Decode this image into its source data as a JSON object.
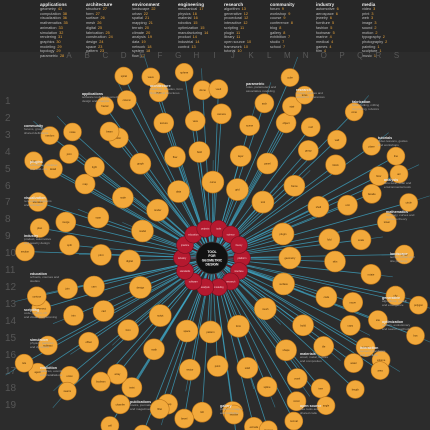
{
  "column_letters": [
    "A",
    "B",
    "C",
    "D",
    "E",
    "F",
    "G",
    "H",
    "I",
    "J",
    "K",
    "L",
    "M",
    "N",
    "O",
    "P",
    "Q",
    "R",
    "S"
  ],
  "row_numbers": [
    "1",
    "2",
    "3",
    "4",
    "5",
    "6",
    "7",
    "8",
    "9",
    "10",
    "11",
    "12",
    "13",
    "14",
    "15",
    "16",
    "17",
    "18",
    "19"
  ],
  "colors": {
    "background": "#2c2c2c",
    "node_fill": "#f2a93b",
    "node_outline": "#b8731a",
    "edge": "#3fa9c9",
    "hub_fill": "#111111",
    "inner_ring": "#b5192f",
    "letter_gray": "#5a5a5a"
  },
  "hub": {
    "label_lines": [
      "TOOL",
      "FOR",
      "GEOMETRIC",
      "DESIGN"
    ]
  },
  "inner_ring": {
    "labels": [
      "platform",
      "interface",
      "research",
      "modeling",
      "analysis",
      "software",
      "standards",
      "industry",
      "practice",
      "education",
      "projects",
      "tools",
      "science",
      "theory"
    ]
  },
  "legend": [
    {
      "title": "applications",
      "lines": [
        [
          "geometry",
          "41"
        ],
        [
          "computation",
          "38"
        ],
        [
          "visualization",
          "36"
        ],
        [
          "mathematics",
          "35"
        ],
        [
          "animation",
          "33"
        ],
        [
          "simulation",
          "32"
        ],
        [
          "rendering",
          "31"
        ],
        [
          "graphics",
          "30"
        ],
        [
          "modeling",
          "29"
        ],
        [
          "topology",
          "29"
        ],
        [
          "parametric",
          "28"
        ]
      ]
    },
    {
      "title": "architecture",
      "lines": [
        [
          "structure",
          "27"
        ],
        [
          "form",
          "27"
        ],
        [
          "surface",
          "26"
        ],
        [
          "mesh",
          "26"
        ],
        [
          "digital",
          "25"
        ],
        [
          "fabrication",
          "25"
        ],
        [
          "construction",
          "24"
        ],
        [
          "design",
          "24"
        ],
        [
          "space",
          "23"
        ],
        [
          "pattern",
          "23"
        ]
      ]
    },
    {
      "title": "environment",
      "lines": [
        [
          "landscape",
          "22"
        ],
        [
          "urban",
          "22"
        ],
        [
          "spatial",
          "21"
        ],
        [
          "mapping",
          "21"
        ],
        [
          "terrain",
          "20"
        ],
        [
          "climate",
          "20"
        ],
        [
          "analysis",
          "19"
        ],
        [
          "data",
          "19"
        ],
        [
          "network",
          "18"
        ],
        [
          "system",
          "18"
        ],
        [
          "flow",
          "17"
        ]
      ]
    },
    {
      "title": "engineering",
      "lines": [
        [
          "mechanical",
          "17"
        ],
        [
          "physics",
          "16"
        ],
        [
          "material",
          "16"
        ],
        [
          "robotics",
          "15"
        ],
        [
          "optimization",
          "15"
        ],
        [
          "manufacturing",
          "14"
        ],
        [
          "product",
          "14"
        ],
        [
          "industrial",
          "14"
        ],
        [
          "control",
          "13"
        ]
      ]
    },
    {
      "title": "research",
      "lines": [
        [
          "algorithm",
          "13"
        ],
        [
          "generative",
          "12"
        ],
        [
          "procedural",
          "12"
        ],
        [
          "interactive",
          "12"
        ],
        [
          "scripting",
          "11"
        ],
        [
          "plugin",
          "11"
        ],
        [
          "library",
          "11"
        ],
        [
          "open source",
          "10"
        ],
        [
          "framework",
          "10"
        ],
        [
          "tutorial",
          "10"
        ]
      ]
    },
    {
      "title": "community",
      "lines": [
        [
          "forum",
          "9"
        ],
        [
          "workshop",
          "9"
        ],
        [
          "course",
          "9"
        ],
        [
          "conference",
          "8"
        ],
        [
          "blog",
          "8"
        ],
        [
          "gallery",
          "8"
        ],
        [
          "exhibition",
          "7"
        ],
        [
          "studio",
          "7"
        ],
        [
          "school",
          "7"
        ]
      ]
    },
    {
      "title": "industry",
      "lines": [
        [
          "automotive",
          "6"
        ],
        [
          "aerospace",
          "6"
        ],
        [
          "jewelry",
          "6"
        ],
        [
          "furniture",
          "5"
        ],
        [
          "fashion",
          "5"
        ],
        [
          "footwear",
          "5"
        ],
        [
          "marine",
          "4"
        ],
        [
          "medical",
          "4"
        ],
        [
          "games",
          "4"
        ],
        [
          "film",
          "4"
        ]
      ]
    },
    {
      "title": "media",
      "lines": [
        [
          "video",
          "3"
        ],
        [
          "print",
          "3"
        ],
        [
          "web",
          "3"
        ],
        [
          "image",
          "3"
        ],
        [
          "sound",
          "2"
        ],
        [
          "motion",
          "2"
        ],
        [
          "typography",
          "2"
        ],
        [
          "photography",
          "2"
        ],
        [
          "painting",
          "1"
        ],
        [
          "sculpture",
          "1"
        ],
        [
          "music",
          "1"
        ]
      ]
    }
  ],
  "nodes": [
    {
      "label": "geometry"
    },
    {
      "label": "surface"
    },
    {
      "label": "mesh"
    },
    {
      "label": "form"
    },
    {
      "label": "pattern"
    },
    {
      "label": "space"
    },
    {
      "label": "script"
    },
    {
      "label": "design"
    },
    {
      "label": "digital"
    },
    {
      "label": "model"
    },
    {
      "label": "render"
    },
    {
      "label": "data"
    },
    {
      "label": "curve"
    },
    {
      "label": "grid"
    },
    {
      "label": "tool"
    },
    {
      "label": "plugin"
    },
    {
      "label": "code"
    },
    {
      "label": "build"
    },
    {
      "label": "shape"
    },
    {
      "label": "solid"
    },
    {
      "label": "point"
    },
    {
      "label": "vector"
    },
    {
      "label": "math"
    },
    {
      "label": "form"
    },
    {
      "label": "cad"
    },
    {
      "label": "cam"
    },
    {
      "label": "print"
    },
    {
      "label": "scan"
    },
    {
      "label": "node"
    },
    {
      "label": "graph"
    },
    {
      "label": "flow"
    },
    {
      "label": "field"
    },
    {
      "label": "layer"
    },
    {
      "label": "panel"
    },
    {
      "label": "frame"
    },
    {
      "label": "shell"
    },
    {
      "label": "fold"
    },
    {
      "label": "skin"
    },
    {
      "label": "tile"
    },
    {
      "label": "voxel"
    },
    {
      "label": "spline"
    },
    {
      "label": "nurbs"
    },
    {
      "label": "loft"
    },
    {
      "label": "sweep"
    },
    {
      "label": "twist"
    },
    {
      "label": "array"
    },
    {
      "label": "offset"
    },
    {
      "label": "trim"
    },
    {
      "label": "join"
    },
    {
      "label": "split"
    },
    {
      "label": "merge"
    },
    {
      "label": "map"
    },
    {
      "label": "light"
    },
    {
      "label": "color"
    },
    {
      "label": "texture"
    },
    {
      "label": "view"
    },
    {
      "label": "camera"
    },
    {
      "label": "scene"
    },
    {
      "label": "object"
    },
    {
      "label": "group"
    },
    {
      "label": "block"
    },
    {
      "label": "unit"
    },
    {
      "label": "scale"
    },
    {
      "label": "rotate"
    },
    {
      "label": "move"
    },
    {
      "label": "copy"
    },
    {
      "label": "mirror"
    },
    {
      "label": "extrude"
    },
    {
      "label": "revolve"
    },
    {
      "label": "bevel"
    },
    {
      "label": "fillet"
    },
    {
      "label": "chamfer"
    },
    {
      "label": "boolean"
    },
    {
      "label": "union"
    },
    {
      "label": "subtract"
    },
    {
      "label": "intersect"
    },
    {
      "label": "contour"
    },
    {
      "label": "section"
    },
    {
      "label": "plan"
    },
    {
      "label": "elevation"
    },
    {
      "label": "detail"
    },
    {
      "label": "joint"
    },
    {
      "label": "beam"
    },
    {
      "label": "column"
    },
    {
      "label": "truss"
    },
    {
      "label": "dome"
    },
    {
      "label": "vault"
    },
    {
      "label": "arch"
    },
    {
      "label": "stair"
    },
    {
      "label": "roof"
    },
    {
      "label": "wall"
    },
    {
      "label": "floor"
    },
    {
      "label": "facade"
    },
    {
      "label": "tower"
    },
    {
      "label": "bridge"
    },
    {
      "label": "city"
    },
    {
      "label": "site"
    },
    {
      "label": "terrain"
    },
    {
      "label": "water"
    },
    {
      "label": "tree"
    },
    {
      "label": "growth"
    },
    {
      "label": "cell"
    },
    {
      "label": "swarm"
    },
    {
      "label": "agent"
    },
    {
      "label": "rule"
    },
    {
      "label": "logic"
    },
    {
      "label": "random"
    },
    {
      "label": "noise"
    },
    {
      "label": "fractal"
    },
    {
      "label": "spiral"
    },
    {
      "label": "wave"
    },
    {
      "label": "sphere"
    },
    {
      "label": "cube"
    },
    {
      "label": "torus"
    },
    {
      "label": "cone"
    },
    {
      "label": "plane"
    },
    {
      "label": "line"
    },
    {
      "label": "arc"
    },
    {
      "label": "circle"
    },
    {
      "label": "polygon"
    },
    {
      "label": "box"
    },
    {
      "label": "volume"
    },
    {
      "label": "area"
    },
    {
      "label": "length"
    },
    {
      "label": "angle"
    },
    {
      "label": "normal"
    },
    {
      "label": "tangent"
    },
    {
      "label": "domain"
    },
    {
      "label": "range"
    },
    {
      "label": "series"
    },
    {
      "label": "list"
    },
    {
      "label": "tree"
    },
    {
      "label": "path"
    },
    {
      "label": "input"
    },
    {
      "label": "output"
    },
    {
      "label": "param"
    },
    {
      "label": "slider"
    },
    {
      "label": "panel"
    },
    {
      "label": "toggle"
    },
    {
      "label": "value"
    },
    {
      "label": "number"
    },
    {
      "label": "text"
    },
    {
      "label": "file"
    },
    {
      "label": "export"
    },
    {
      "label": "import"
    },
    {
      "label": "bake"
    },
    {
      "label": "preview"
    },
    {
      "label": "display"
    },
    {
      "label": "paint"
    },
    {
      "label": "sketch"
    },
    {
      "label": "draw"
    },
    {
      "label": "study"
    },
    {
      "label": "test"
    },
    {
      "label": "prototype"
    }
  ],
  "blurbs": [
    {
      "title": "applications",
      "lines": [
        "software tools for geometry",
        "design and analysis"
      ]
    },
    {
      "title": "architecture",
      "lines": [
        "buildings, facades, form",
        "finding and structures"
      ]
    },
    {
      "title": "parametric",
      "lines": [
        "rules, parameters and",
        "associative modeling"
      ]
    },
    {
      "title": "research",
      "lines": [
        "papers, studies and",
        "academic references"
      ]
    },
    {
      "title": "fabrication",
      "lines": [
        "laser cutting, milling",
        "3d printing, robotics"
      ]
    },
    {
      "title": "community",
      "lines": [
        "forums, groups and",
        "shared definitions"
      ]
    },
    {
      "title": "tutorials",
      "lines": [
        "video lessons, guides",
        "and workshops"
      ]
    },
    {
      "title": "plugins",
      "lines": [
        "extensions, libraries",
        "and add-ons"
      ]
    },
    {
      "title": "analysis",
      "lines": [
        "structural, solar and",
        "environmental tools"
      ]
    },
    {
      "title": "visualization",
      "lines": [
        "rendering, diagrams",
        "and animation"
      ]
    },
    {
      "title": "mathematics",
      "lines": [
        "topology, curves and",
        "surfaces theory"
      ]
    },
    {
      "title": "industry",
      "lines": [
        "product, automotive",
        "and jewelry design"
      ]
    },
    {
      "title": "landscape",
      "lines": [
        "terrain, urban and",
        "site planning"
      ]
    },
    {
      "title": "education",
      "lines": [
        "schools, courses and",
        "studios"
      ]
    },
    {
      "title": "generative",
      "lines": [
        "algorithms, growth",
        "and emergence"
      ]
    },
    {
      "title": "scripting",
      "lines": [
        "code, python, c#",
        "and visual programming"
      ]
    },
    {
      "title": "optimization",
      "lines": [
        "solvers, evolutionary",
        "and search methods"
      ]
    },
    {
      "title": "simulation",
      "lines": [
        "physics, particles",
        "and dynamics"
      ]
    },
    {
      "title": "interaction",
      "lines": [
        "sensors, hardware",
        "and live data"
      ]
    },
    {
      "title": "exhibition",
      "lines": [
        "galleries, events",
        "and installations"
      ]
    },
    {
      "title": "materials",
      "lines": [
        "wood, metal, textiles",
        "and composites"
      ]
    },
    {
      "title": "publications",
      "lines": [
        "books, journals",
        "and magazines"
      ]
    },
    {
      "title": "gallery",
      "lines": [
        "projects, images",
        "and portfolios"
      ]
    },
    {
      "title": "open source",
      "lines": [
        "free tools and",
        "shared code"
      ]
    }
  ]
}
